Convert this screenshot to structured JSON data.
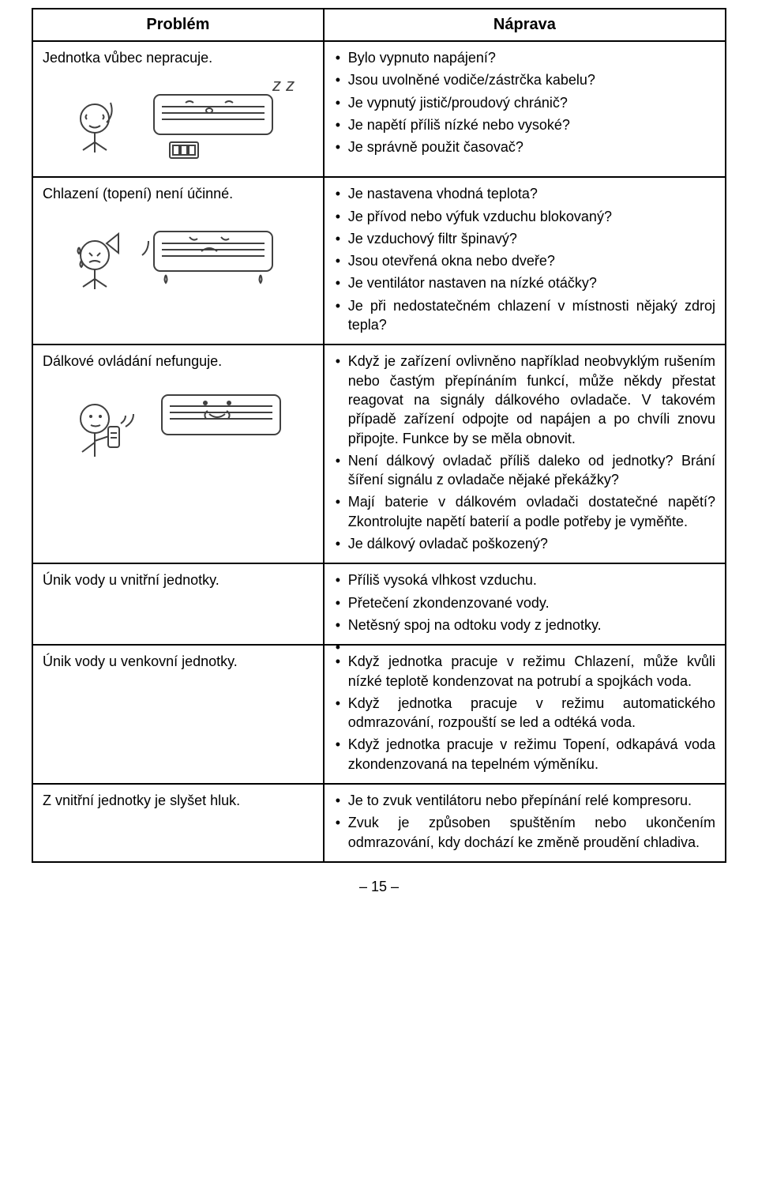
{
  "header": {
    "problem": "Problém",
    "remedy": "Náprava"
  },
  "rows": [
    {
      "problem": "Jednotka vůbec nepracuje.",
      "has_illustration": true,
      "remedies": [
        "Bylo vypnuto napájení?",
        "Jsou uvolněné vodiče/zástrčka kabelu?",
        "Je vypnutý jistič/proudový chránič?",
        "Je napětí příliš nízké nebo vysoké?",
        "Je správně použit časovač?"
      ]
    },
    {
      "problem": "Chlazení (topení) není účinné.",
      "has_illustration": true,
      "remedies": [
        "Je nastavena vhodná teplota?",
        "Je přívod nebo výfuk vzduchu blokovaný?",
        "Je vzduchový filtr špinavý?",
        "Jsou otevřená okna nebo dveře?",
        "Je ventilátor nastaven na nízké otáčky?",
        "Je při nedostatečném chlazení v místnosti nějaký zdroj tepla?"
      ]
    },
    {
      "problem": "Dálkové ovládání nefunguje.",
      "has_illustration": true,
      "remedies": [
        "Když je zařízení ovlivněno například neobvyklým rušením nebo častým přepínáním funkcí, může někdy přestat reagovat na signály dálkového ovladače. V takovém případě zařízení odpojte od napájen a po chvíli znovu připojte. Funkce by se měla obnovit.",
        "Není dálkový ovladač příliš daleko od jednotky? Brání šíření signálu z ovladače nějaké překážky?",
        "Mají baterie v dálkovém ovladači dostatečné napětí? Zkontrolujte napětí baterií a podle potřeby je vyměňte.",
        "Je dálkový ovladač poškozený?"
      ]
    },
    {
      "problem": "Únik vody u vnitřní jednotky.",
      "has_illustration": false,
      "remedies": [
        "Příliš vysoká vlhkost vzduchu.",
        "Přetečení zkondenzované vody.",
        "Netěsný spoj na odtoku vody z jednotky.",
        ""
      ]
    },
    {
      "problem": "Únik vody u venkovní jednotky.",
      "has_illustration": false,
      "remedies": [
        "Když jednotka pracuje v režimu Chlazení, může kvůli nízké teplotě kondenzovat na potrubí a spojkách voda.",
        "Když jednotka pracuje v režimu automatického odmrazování, rozpouští se led a odtéká voda.",
        "Když jednotka pracuje v režimu Topení, odkapává voda zkondenzovaná na tepelném výměníku."
      ]
    },
    {
      "problem": "Z vnitřní jednotky je slyšet hluk.",
      "has_illustration": false,
      "remedies": [
        "Je to zvuk ventilátoru nebo přepínání relé kompresoru.",
        "Zvuk je způsoben spuštěním nebo ukončením odmrazování, kdy dochází ke změně proudění chladiva."
      ]
    }
  ],
  "page_number": "– 15 –",
  "colors": {
    "text": "#000000",
    "background": "#ffffff",
    "border": "#000000",
    "illustration_stroke": "#404040",
    "illustration_fill": "#ffffff"
  }
}
